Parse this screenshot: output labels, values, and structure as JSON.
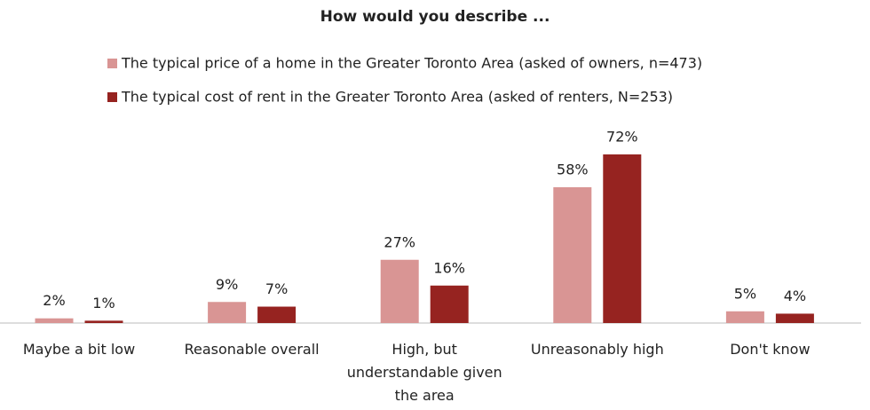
{
  "chart_data": {
    "type": "bar",
    "title": "How would you describe ...",
    "categories": [
      "Maybe a bit low",
      "Reasonable overall",
      "High, but understandable given the area",
      "Unreasonably high",
      "Don't know"
    ],
    "series": [
      {
        "name": "The typical price of a home in the Greater Toronto Area (asked of owners, n=473)",
        "color": "#d99594",
        "values": [
          2,
          9,
          27,
          58,
          5
        ],
        "value_labels": [
          "2%",
          "9%",
          "27%",
          "58%",
          "5%"
        ]
      },
      {
        "name": "The typical cost of rent in the Greater Toronto Area (asked of renters, N=253)",
        "color": "#962320",
        "values": [
          1,
          7,
          16,
          72,
          4
        ],
        "value_labels": [
          "1%",
          "7%",
          "16%",
          "72%",
          "4%"
        ]
      }
    ]
  }
}
